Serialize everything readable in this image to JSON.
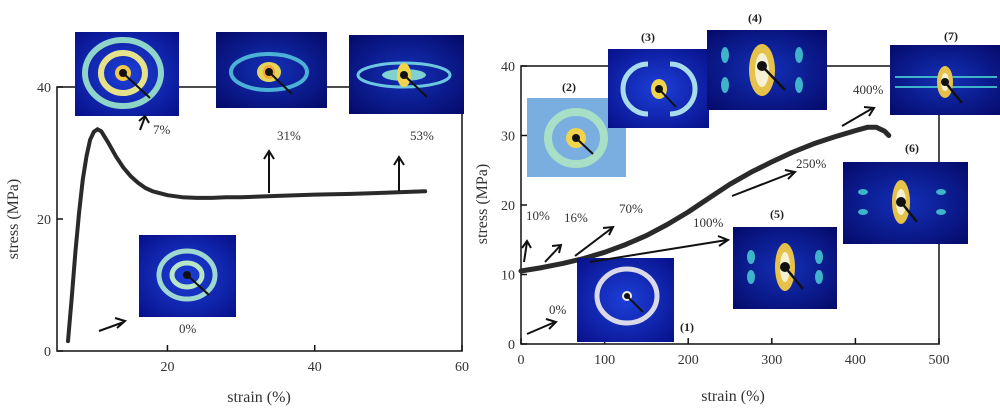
{
  "chart_data": [
    {
      "type": "line",
      "xlabel": "strain (%)",
      "ylabel": "stress (MPa)",
      "xlim": [
        5,
        60
      ],
      "ylim": [
        0,
        40
      ],
      "x_ticks": [
        20,
        40,
        60
      ],
      "y_ticks": [
        0,
        20,
        40
      ],
      "x_tick_labels": [
        "20",
        "40",
        "60"
      ],
      "y_tick_labels": [
        "0",
        "20",
        "40"
      ],
      "grid": false,
      "series": [
        {
          "x": [
            6.5,
            7,
            7.5,
            8,
            8.5,
            9,
            9.5,
            10,
            10.5,
            11,
            12,
            13,
            14,
            15,
            16,
            17,
            18,
            20,
            22,
            24,
            26,
            28,
            30,
            35,
            40,
            45,
            50,
            55
          ],
          "y": [
            1.5,
            8,
            15,
            21,
            26,
            29.5,
            32,
            33.2,
            33.6,
            33.3,
            31.5,
            29.5,
            27.8,
            26.5,
            25.5,
            24.7,
            24.2,
            23.6,
            23.3,
            23.2,
            23.2,
            23.3,
            23.3,
            23.5,
            23.7,
            23.8,
            24,
            24.2
          ]
        }
      ],
      "annotations": [
        {
          "text": "0%",
          "x": 7,
          "y": 1.5
        },
        {
          "text": "7%",
          "x": 10,
          "y": 33.5
        },
        {
          "text": "31%",
          "x": 31,
          "y": 23.3
        },
        {
          "text": "53%",
          "x": 50,
          "y": 24
        }
      ]
    },
    {
      "type": "line",
      "xlabel": "strain (%)",
      "ylabel": "stress (MPa)",
      "xlim": [
        0,
        500
      ],
      "ylim": [
        0,
        40
      ],
      "x_ticks": [
        0,
        100,
        200,
        300,
        400,
        500
      ],
      "y_ticks": [
        0,
        10,
        20,
        30,
        40
      ],
      "x_tick_labels": [
        "0",
        "100",
        "200",
        "300",
        "400",
        "500"
      ],
      "y_tick_labels": [
        "0",
        "10",
        "20",
        "30",
        "40"
      ],
      "grid": false,
      "series": [
        {
          "x": [
            0,
            25,
            50,
            75,
            100,
            125,
            150,
            175,
            200,
            225,
            250,
            275,
            300,
            325,
            350,
            375,
            400,
            415,
            425,
            435,
            440
          ],
          "y": [
            10.5,
            11,
            11.6,
            12.3,
            13.2,
            14.3,
            15.6,
            17.2,
            19,
            21,
            23,
            24.7,
            26.2,
            27.6,
            28.8,
            29.8,
            30.7,
            31.2,
            31.2,
            30.6,
            30
          ]
        }
      ],
      "panel_labels": [
        "(1)",
        "(2)",
        "(3)",
        "(4)",
        "(5)",
        "(6)",
        "(7)"
      ],
      "annotations": [
        {
          "text": "0%",
          "x": 0,
          "y": 10.5
        },
        {
          "text": "10%",
          "x": 10,
          "y": 10.7
        },
        {
          "text": "16%",
          "x": 16,
          "y": 10.8
        },
        {
          "text": "70%",
          "x": 70,
          "y": 12.2
        },
        {
          "text": "100%",
          "x": 100,
          "y": 13.2
        },
        {
          "text": "250%",
          "x": 250,
          "y": 23
        },
        {
          "text": "400%",
          "x": 400,
          "y": 30.7
        }
      ]
    }
  ]
}
